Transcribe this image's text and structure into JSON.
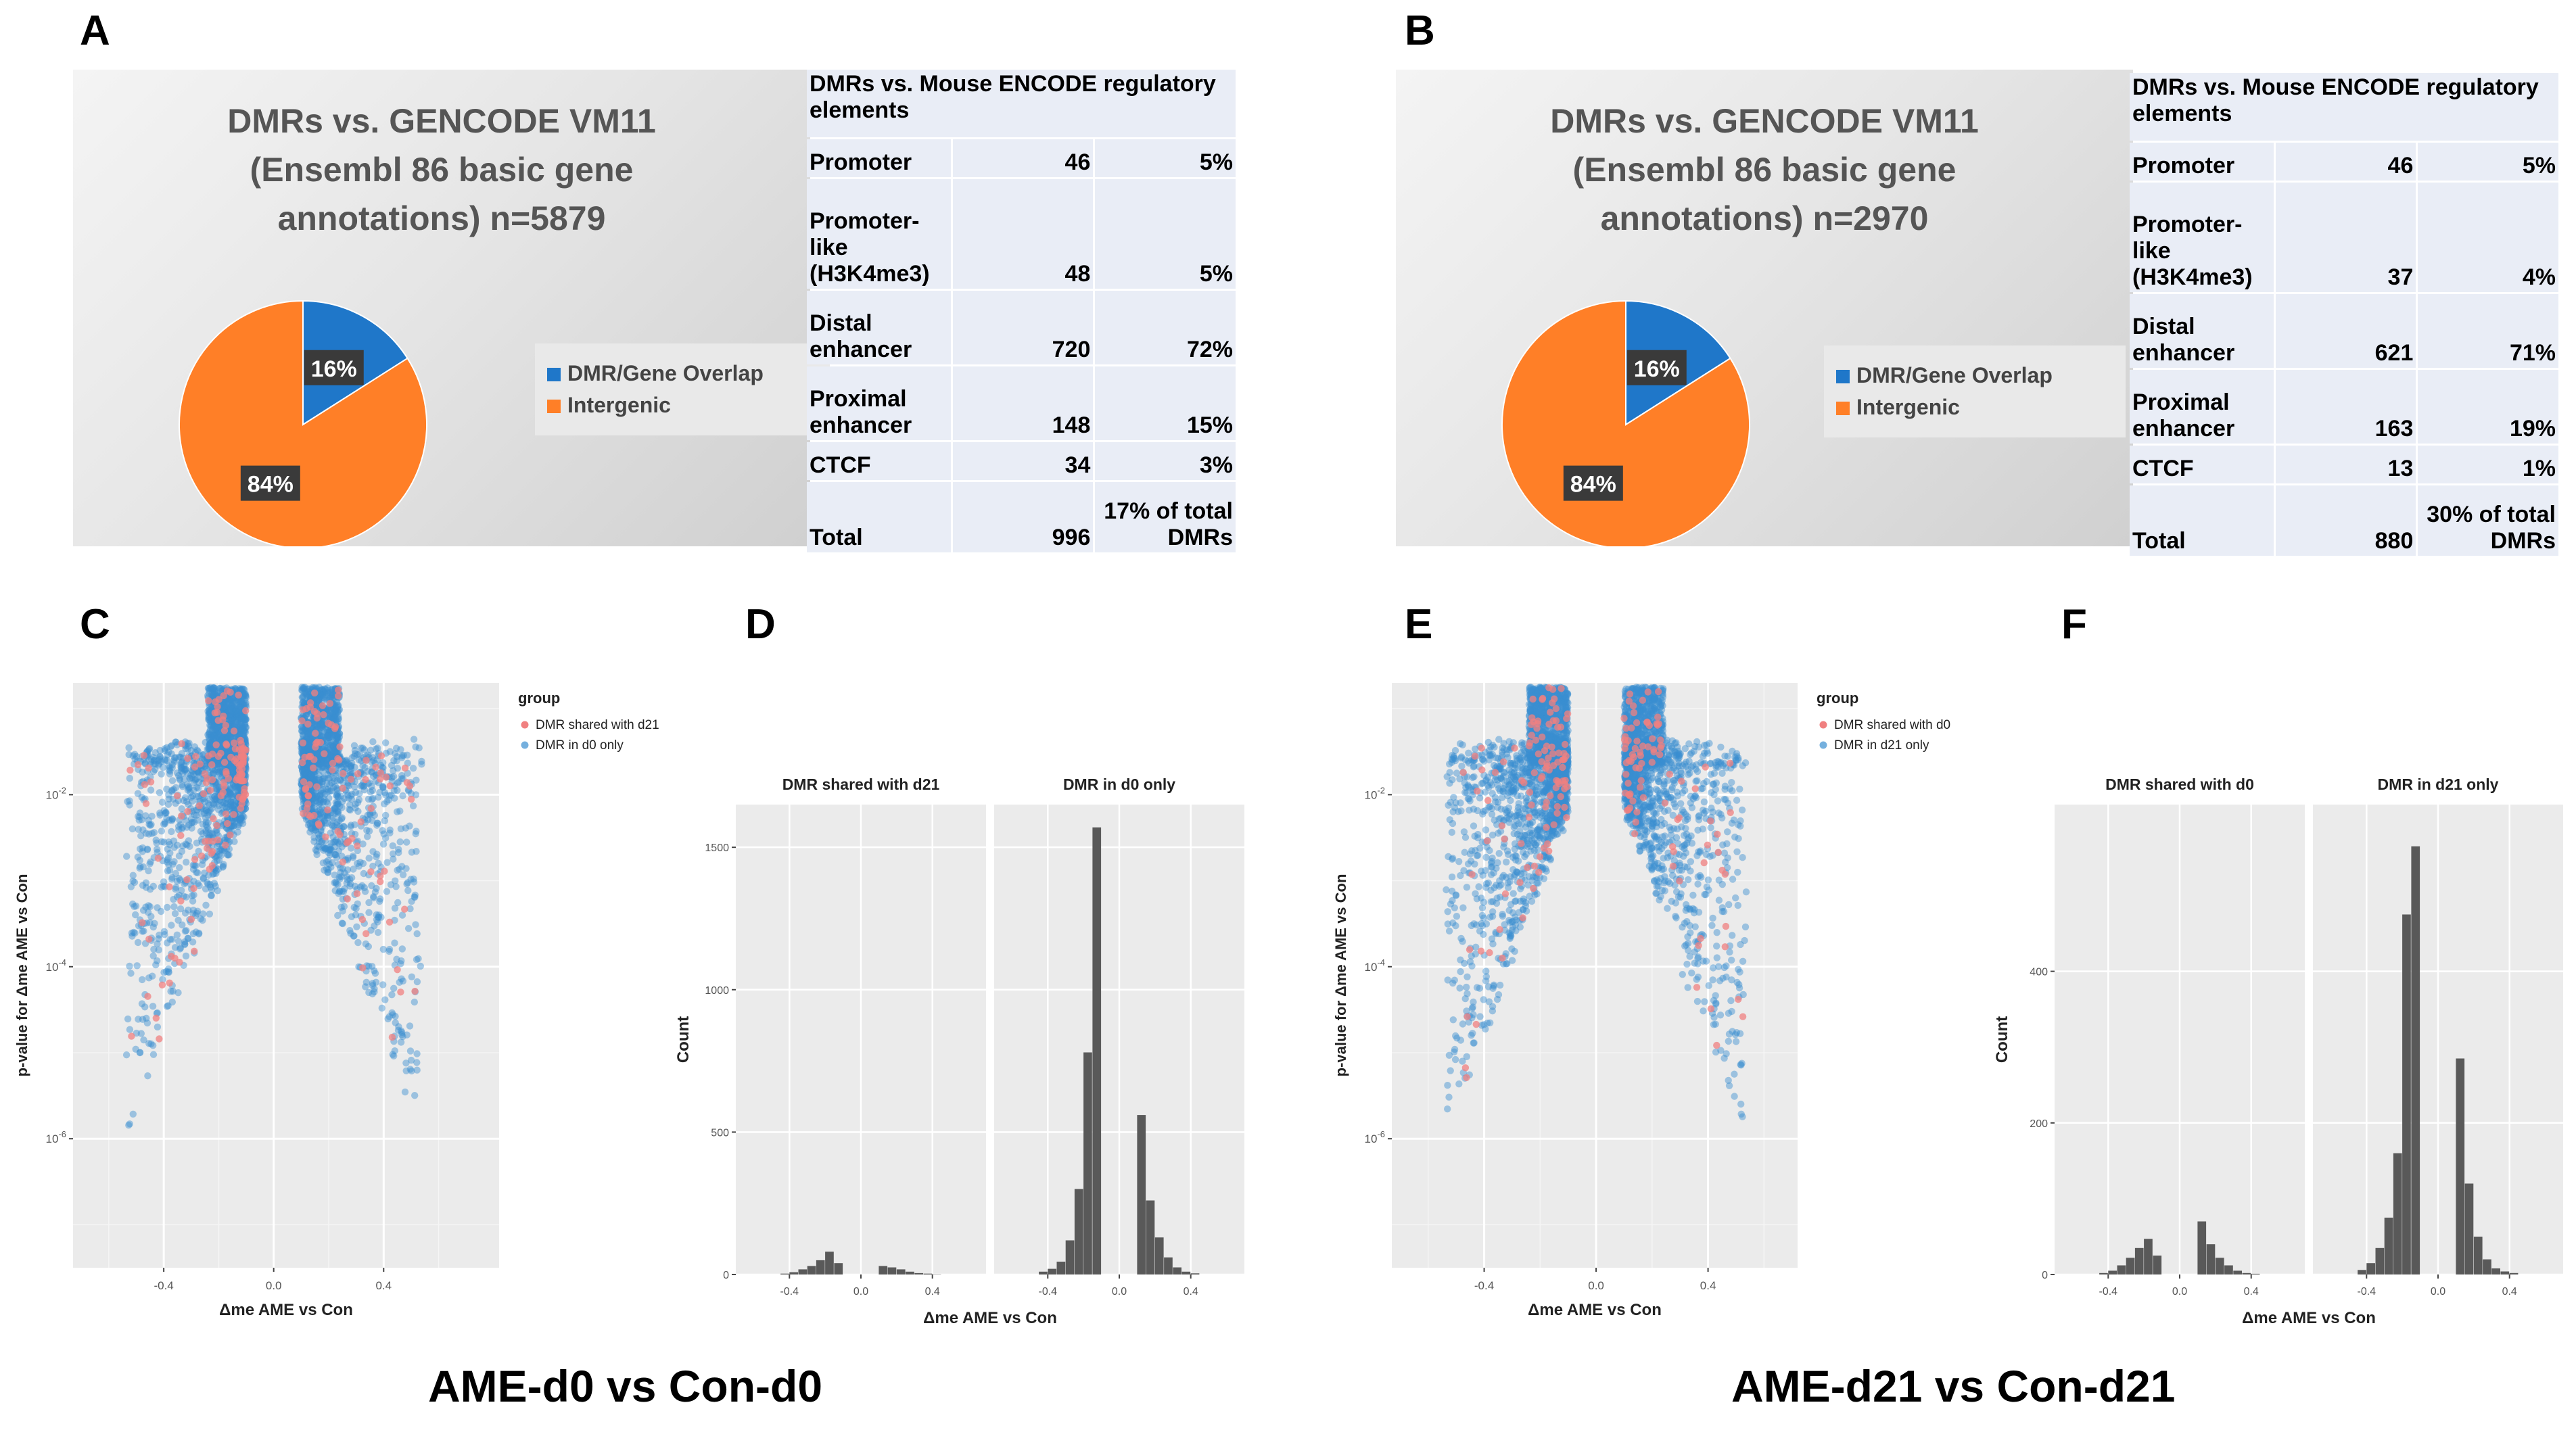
{
  "panel_letters": {
    "a": "A",
    "b": "B",
    "c": "C",
    "d": "D",
    "e": "E",
    "f": "F"
  },
  "bottom_titles": {
    "left": "AME-d0 vs Con-d0",
    "right": "AME-d21 vs Con-d21"
  },
  "colors": {
    "blue": "#1f77c9",
    "orange": "#ff7f27",
    "shared": "#f08080",
    "only": "#3a8fd0",
    "bar": "#595959",
    "panel_bg": "#ebebeb"
  },
  "panelA": {
    "title": [
      "DMRs vs. GENCODE VM11",
      "(Ensembl 86 basic gene",
      "annotations) n=5879"
    ],
    "legend": [
      "DMR/Gene Overlap",
      "Intergenic"
    ],
    "chart_data": {
      "type": "pie",
      "labels": [
        "DMR/Gene Overlap",
        "Intergenic"
      ],
      "values": [
        16,
        84
      ],
      "value_labels": [
        "16%",
        "84%"
      ]
    },
    "table": {
      "header": "DMRs vs. Mouse ENCODE regulatory elements",
      "rows": [
        {
          "label": "Promoter",
          "count": "46",
          "pct": "5%"
        },
        {
          "label": "Promoter-like (H3K4me3)",
          "count": "48",
          "pct": "5%"
        },
        {
          "label": "Distal enhancer",
          "count": "720",
          "pct": "72%"
        },
        {
          "label": "Proximal enhancer",
          "count": "148",
          "pct": "15%"
        },
        {
          "label": "CTCF",
          "count": "34",
          "pct": "3%"
        },
        {
          "label": "Total",
          "count": "996",
          "pct": "17% of total DMRs"
        }
      ]
    }
  },
  "panelB": {
    "title": [
      "DMRs vs. GENCODE VM11",
      "(Ensembl 86 basic gene",
      "annotations) n=2970"
    ],
    "legend": [
      "DMR/Gene Overlap",
      "Intergenic"
    ],
    "chart_data": {
      "type": "pie",
      "labels": [
        "DMR/Gene Overlap",
        "Intergenic"
      ],
      "values": [
        16,
        84
      ],
      "value_labels": [
        "16%",
        "84%"
      ]
    },
    "table": {
      "header": "DMRs vs. Mouse ENCODE regulatory elements",
      "rows": [
        {
          "label": "Promoter",
          "count": "46",
          "pct": "5%"
        },
        {
          "label": "Promoter-like (H3K4me3)",
          "count": "37",
          "pct": "4%"
        },
        {
          "label": "Distal enhancer",
          "count": "621",
          "pct": "71%"
        },
        {
          "label": "Proximal enhancer",
          "count": "163",
          "pct": "19%"
        },
        {
          "label": "CTCF",
          "count": "13",
          "pct": "1%"
        },
        {
          "label": "Total",
          "count": "880",
          "pct": "30% of total DMRs"
        }
      ]
    }
  },
  "panelC": {
    "chart_data": {
      "type": "scatter",
      "xlabel": "Δme AME vs Con",
      "ylabel": "p-value for Δme AME vs Con",
      "xticks": [
        -0.4,
        0.0,
        0.4
      ],
      "xtick_labels": [
        "-0.4",
        "0.0",
        "0.4"
      ],
      "yticks": [
        -6,
        -4,
        -2
      ],
      "ytick_labels": [
        "10^-6",
        "10^-4",
        "10^-2"
      ],
      "xlim": [
        -0.73,
        0.82
      ],
      "ylim_log10": [
        -0.7,
        -7.5
      ],
      "legend_title": "group",
      "series": [
        "DMR shared with d21",
        "DMR in d0 only"
      ]
    }
  },
  "panelD": {
    "chart_data": {
      "type": "bar",
      "ylabel": "Count",
      "xlabel": "Δme AME vs Con",
      "facets": [
        "DMR shared with d21",
        "DMR in d0 only"
      ],
      "yticks": [
        0,
        500,
        1000,
        1500
      ],
      "ylim": [
        0,
        1650
      ],
      "xticks": [
        -0.4,
        0.0,
        0.4
      ],
      "xtick_labels": [
        "-0.4",
        "0.0",
        "0.4"
      ],
      "xlim": [
        -0.7,
        0.7
      ],
      "bin_width": 0.05,
      "bins": [
        -0.425,
        -0.375,
        -0.325,
        -0.275,
        -0.225,
        -0.175,
        -0.125,
        0.125,
        0.175,
        0.225,
        0.275,
        0.325,
        0.375,
        0.425
      ],
      "series": [
        {
          "name": "DMR shared with d21",
          "values": [
            3,
            8,
            18,
            30,
            50,
            80,
            40,
            30,
            25,
            18,
            10,
            5,
            3,
            1
          ]
        },
        {
          "name": "DMR in d0 only",
          "values": [
            10,
            20,
            45,
            120,
            300,
            780,
            1570,
            560,
            260,
            130,
            60,
            25,
            10,
            4
          ]
        }
      ]
    }
  },
  "panelE": {
    "chart_data": {
      "type": "scatter",
      "xlabel": "Δme AME vs Con",
      "ylabel": "p-value for Δme AME vs Con",
      "xticks": [
        -0.4,
        0.0,
        0.4
      ],
      "xtick_labels": [
        "-0.4",
        "0.0",
        "0.4"
      ],
      "yticks": [
        -6,
        -4,
        -2
      ],
      "ytick_labels": [
        "10^-6",
        "10^-4",
        "10^-2"
      ],
      "xlim": [
        -0.73,
        0.72
      ],
      "ylim_log10": [
        -0.7,
        -7.5
      ],
      "legend_title": "group",
      "series": [
        "DMR shared with d0",
        "DMR in d21 only"
      ]
    }
  },
  "panelF": {
    "chart_data": {
      "type": "bar",
      "ylabel": "Count",
      "xlabel": "Δme AME vs Con",
      "facets": [
        "DMR shared with d0",
        "DMR in d21 only"
      ],
      "yticks": [
        0,
        200,
        400
      ],
      "ylim": [
        0,
        620
      ],
      "xticks": [
        -0.4,
        0.0,
        0.4
      ],
      "xtick_labels": [
        "-0.4",
        "0.0",
        "0.4"
      ],
      "xlim": [
        -0.7,
        0.7
      ],
      "bin_width": 0.05,
      "bins": [
        -0.425,
        -0.375,
        -0.325,
        -0.275,
        -0.225,
        -0.175,
        -0.125,
        0.125,
        0.175,
        0.225,
        0.275,
        0.325,
        0.375,
        0.425
      ],
      "series": [
        {
          "name": "DMR shared with d0",
          "values": [
            2,
            5,
            12,
            22,
            35,
            47,
            25,
            70,
            40,
            22,
            12,
            5,
            2,
            1
          ]
        },
        {
          "name": "DMR in d21 only",
          "values": [
            6,
            15,
            35,
            75,
            160,
            475,
            565,
            285,
            120,
            50,
            20,
            8,
            4,
            2
          ]
        }
      ]
    }
  }
}
